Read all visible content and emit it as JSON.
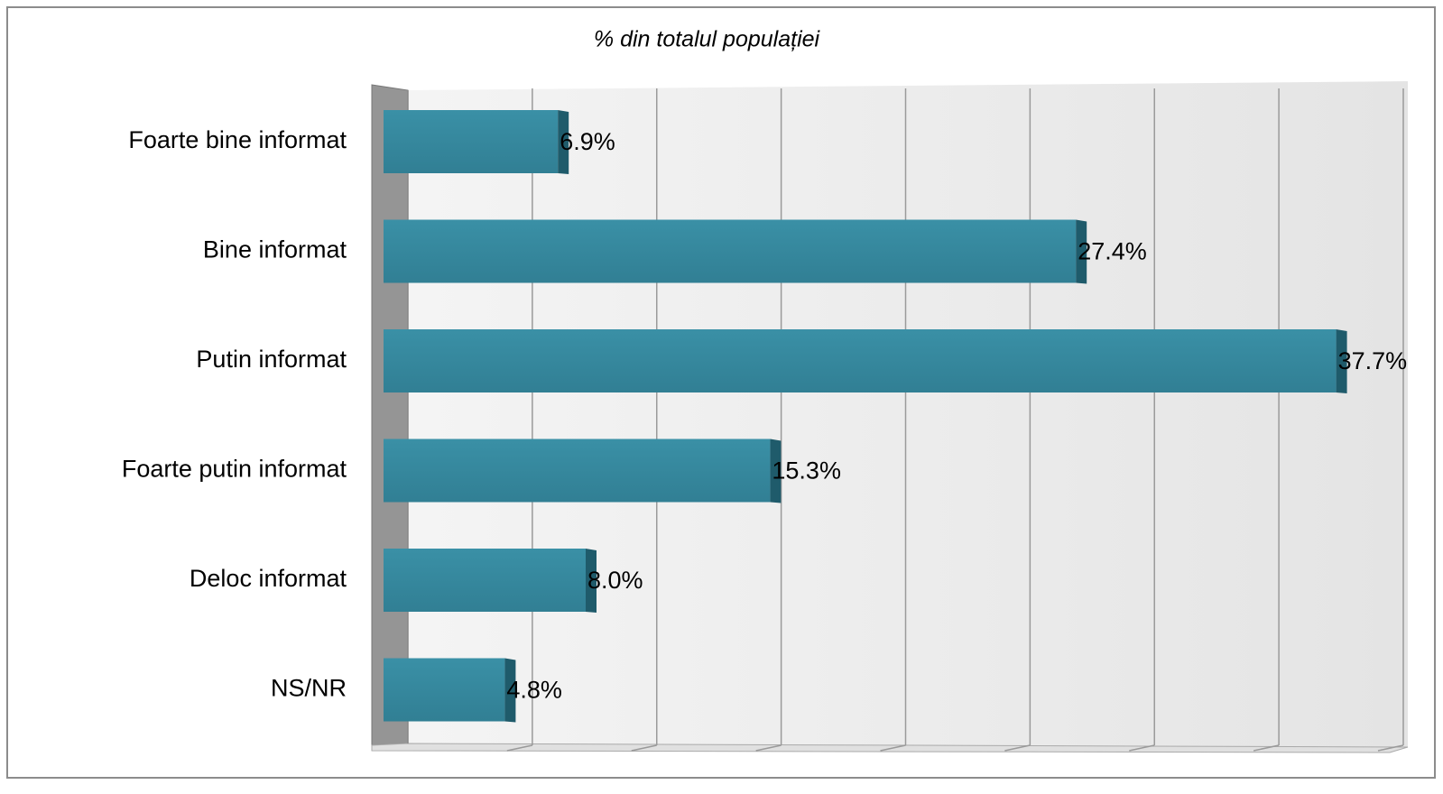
{
  "chart_data": {
    "type": "bar",
    "orientation": "horizontal",
    "title": "% din totalul populației",
    "categories": [
      "Foarte bine informat",
      "Bine informat",
      "Putin informat",
      "Foarte putin informat",
      "Deloc informat",
      "NS/NR"
    ],
    "values": [
      6.9,
      27.4,
      37.7,
      15.3,
      8,
      4.8
    ],
    "value_labels": [
      "6.9%",
      "27.4%",
      "37.7%",
      "15.3%",
      "8.0%",
      "4.8%"
    ],
    "color": "#358aa0",
    "xlim": [
      0,
      40
    ],
    "xticks": [
      0,
      5,
      10,
      15,
      20,
      25,
      30,
      35,
      40
    ],
    "grid": true
  }
}
